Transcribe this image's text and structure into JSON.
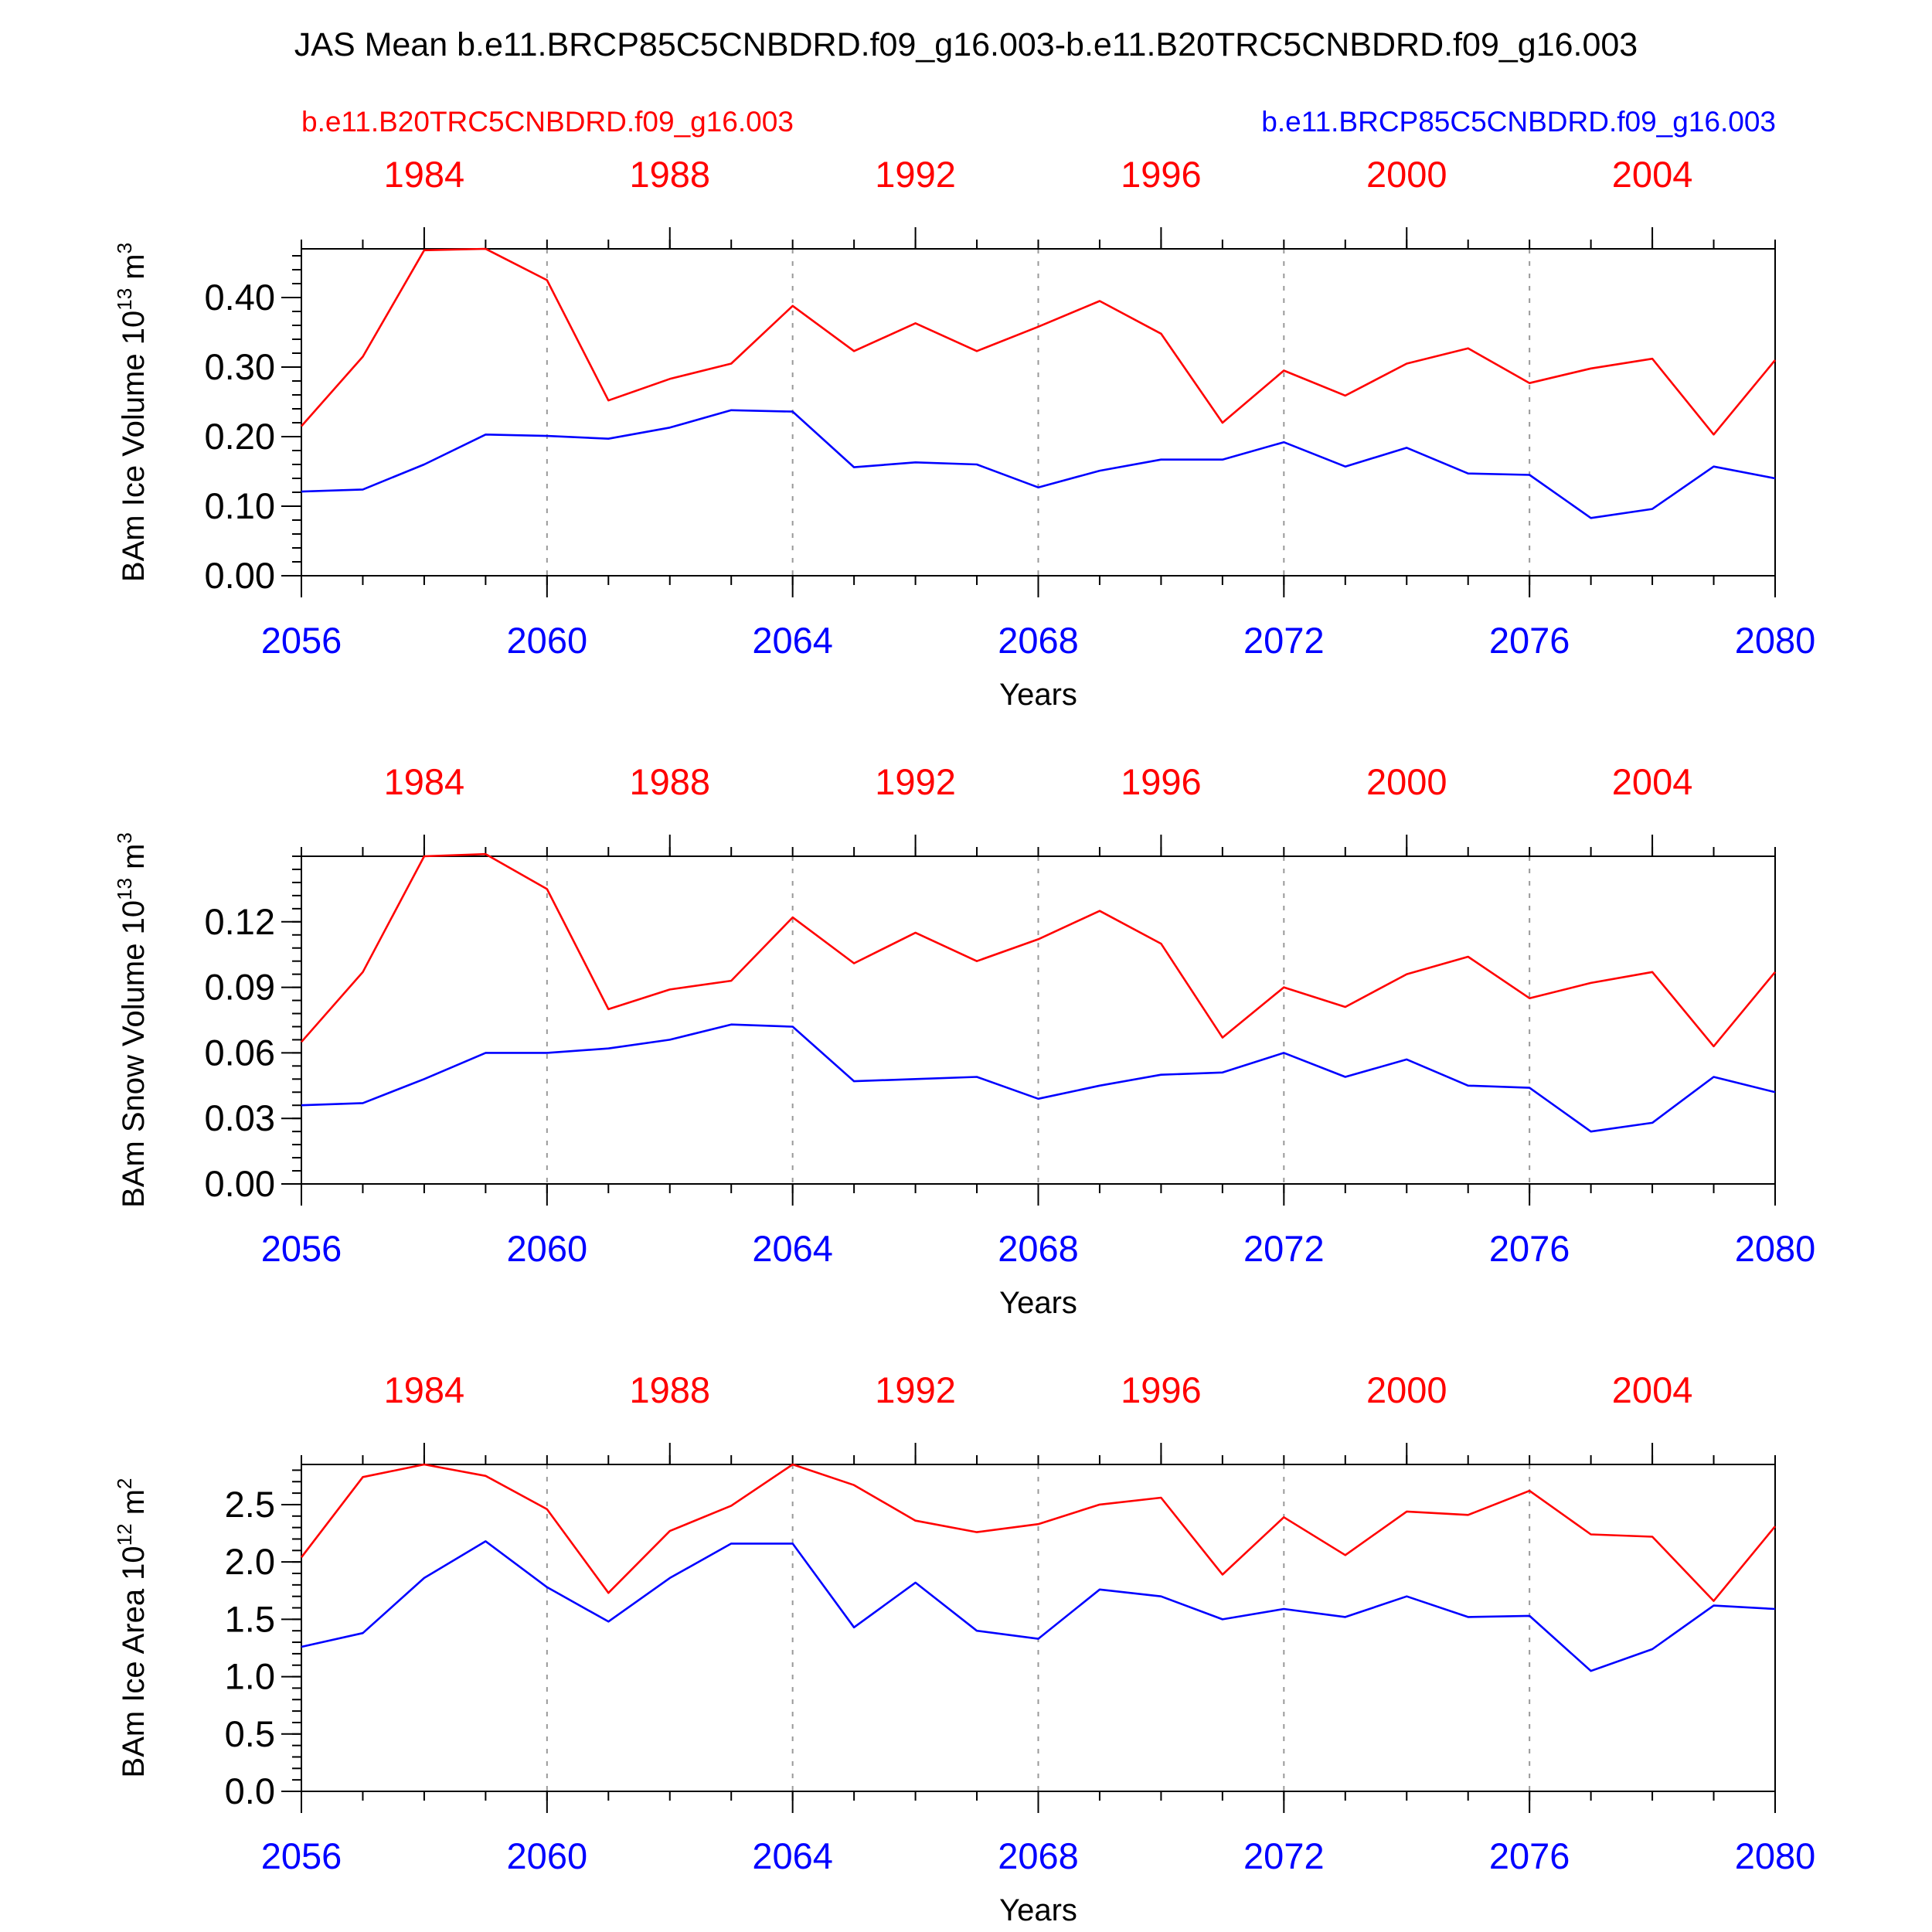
{
  "figure": {
    "title": "JAS Mean b.e11.BRCP85C5CNBDRD.f09_g16.003-b.e11.B20TRC5CNBDRD.f09_g16.003",
    "left_label": "b.e11.B20TRC5CNBDRD.f09_g16.003",
    "right_label": "b.e11.BRCP85C5CNBDRD.f09_g16.003",
    "colors": {
      "historical": "#ff0000",
      "future": "#0000ff"
    }
  },
  "chart_data": [
    {
      "type": "line",
      "xlabel": "Years",
      "ylabel": "BAm Ice Volume 10",
      "ylabel_exp": "13",
      "ylabel_unit": " m",
      "ylabel_unit_exp": "3",
      "x_bottom": [
        2056,
        2057,
        2058,
        2059,
        2060,
        2061,
        2062,
        2063,
        2064,
        2065,
        2066,
        2067,
        2068,
        2069,
        2070,
        2071,
        2072,
        2073,
        2074,
        2075,
        2076,
        2077,
        2078,
        2079,
        2080
      ],
      "xlim": [
        2056,
        2080
      ],
      "x_bottom_ticks": [
        "2056",
        "2060",
        "2064",
        "2068",
        "2072",
        "2076",
        "2080"
      ],
      "x_top_ticks": [
        "1984",
        "1988",
        "1992",
        "1996",
        "2000",
        "2004"
      ],
      "ylim": [
        0,
        0.47
      ],
      "y_ticks": [
        "0.00",
        "0.10",
        "0.20",
        "0.30",
        "0.40"
      ],
      "series": [
        {
          "color": "#ff0000",
          "values": [
            0.215,
            0.315,
            0.468,
            0.47,
            0.425,
            0.252,
            0.283,
            0.305,
            0.388,
            0.323,
            0.363,
            0.323,
            0.358,
            0.395,
            0.348,
            0.22,
            0.295,
            0.259,
            0.305,
            0.327,
            0.277,
            0.298,
            0.312,
            0.203,
            0.31
          ]
        },
        {
          "color": "#0000ff",
          "values": [
            0.121,
            0.124,
            0.16,
            0.203,
            0.201,
            0.197,
            0.213,
            0.238,
            0.236,
            0.156,
            0.163,
            0.16,
            0.127,
            0.151,
            0.167,
            0.167,
            0.192,
            0.157,
            0.184,
            0.147,
            0.145,
            0.083,
            0.096,
            0.157,
            0.14
          ]
        }
      ]
    },
    {
      "type": "line",
      "xlabel": "Years",
      "ylabel": "BAm Snow Volume 10",
      "ylabel_exp": "13",
      "ylabel_unit": " m",
      "ylabel_unit_exp": "3",
      "x_bottom": [
        2056,
        2057,
        2058,
        2059,
        2060,
        2061,
        2062,
        2063,
        2064,
        2065,
        2066,
        2067,
        2068,
        2069,
        2070,
        2071,
        2072,
        2073,
        2074,
        2075,
        2076,
        2077,
        2078,
        2079,
        2080
      ],
      "xlim": [
        2056,
        2080
      ],
      "x_bottom_ticks": [
        "2056",
        "2060",
        "2064",
        "2068",
        "2072",
        "2076",
        "2080"
      ],
      "x_top_ticks": [
        "1984",
        "1988",
        "1992",
        "1996",
        "2000",
        "2004"
      ],
      "ylim": [
        0,
        0.15
      ],
      "y_ticks": [
        "0.00",
        "0.03",
        "0.06",
        "0.09",
        "0.12"
      ],
      "series": [
        {
          "color": "#ff0000",
          "values": [
            0.065,
            0.097,
            0.15,
            0.151,
            0.135,
            0.08,
            0.089,
            0.093,
            0.122,
            0.101,
            0.115,
            0.102,
            0.112,
            0.125,
            0.11,
            0.067,
            0.09,
            0.081,
            0.096,
            0.104,
            0.085,
            0.092,
            0.097,
            0.063,
            0.097
          ]
        },
        {
          "color": "#0000ff",
          "values": [
            0.036,
            0.037,
            0.048,
            0.06,
            0.06,
            0.062,
            0.066,
            0.073,
            0.072,
            0.047,
            0.048,
            0.049,
            0.039,
            0.045,
            0.05,
            0.051,
            0.06,
            0.049,
            0.057,
            0.045,
            0.044,
            0.024,
            0.028,
            0.049,
            0.042
          ]
        }
      ]
    },
    {
      "type": "line",
      "xlabel": "Years",
      "ylabel": "BAm Ice Area 10",
      "ylabel_exp": "12",
      "ylabel_unit": " m",
      "ylabel_unit_exp": "2",
      "x_bottom": [
        2056,
        2057,
        2058,
        2059,
        2060,
        2061,
        2062,
        2063,
        2064,
        2065,
        2066,
        2067,
        2068,
        2069,
        2070,
        2071,
        2072,
        2073,
        2074,
        2075,
        2076,
        2077,
        2078,
        2079,
        2080
      ],
      "xlim": [
        2056,
        2080
      ],
      "x_bottom_ticks": [
        "2056",
        "2060",
        "2064",
        "2068",
        "2072",
        "2076",
        "2080"
      ],
      "x_top_ticks": [
        "1984",
        "1988",
        "1992",
        "1996",
        "2000",
        "2004"
      ],
      "ylim": [
        0,
        2.85
      ],
      "y_ticks": [
        "0.0",
        "0.5",
        "1.0",
        "1.5",
        "2.0",
        "2.5"
      ],
      "series": [
        {
          "color": "#ff0000",
          "values": [
            2.04,
            2.74,
            2.85,
            2.75,
            2.46,
            1.73,
            2.27,
            2.49,
            2.85,
            2.67,
            2.36,
            2.26,
            2.33,
            2.5,
            2.56,
            1.89,
            2.39,
            2.06,
            2.44,
            2.41,
            2.62,
            2.24,
            2.22,
            1.66,
            2.31
          ]
        },
        {
          "color": "#0000ff",
          "values": [
            1.26,
            1.38,
            1.86,
            2.18,
            1.78,
            1.48,
            1.86,
            2.16,
            2.16,
            1.43,
            1.82,
            1.4,
            1.33,
            1.76,
            1.7,
            1.5,
            1.59,
            1.52,
            1.7,
            1.52,
            1.53,
            1.05,
            1.24,
            1.62,
            1.59
          ]
        }
      ]
    }
  ]
}
